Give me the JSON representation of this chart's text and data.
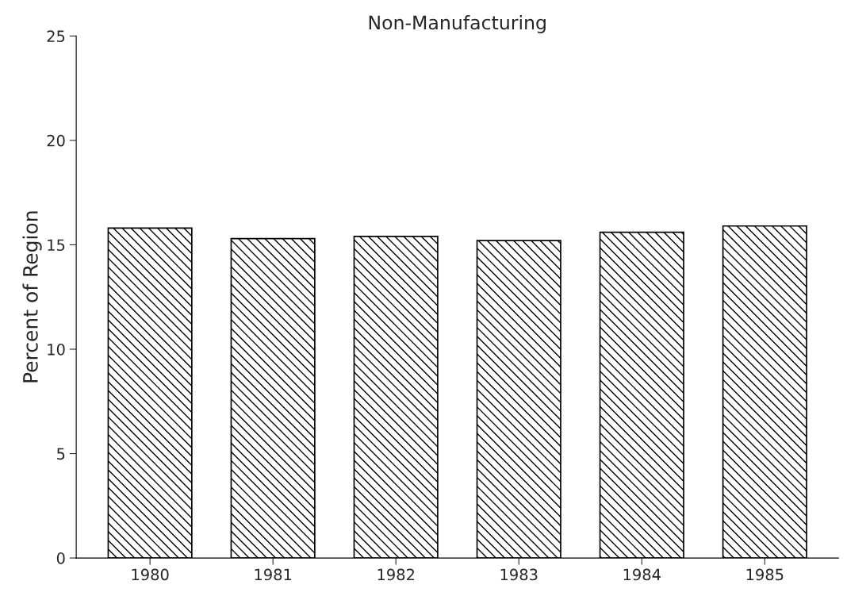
{
  "chart_data": {
    "type": "bar",
    "title": "Non-Manufacturing",
    "ylabel": "Percent of Region",
    "categories": [
      "1980",
      "1981",
      "1982",
      "1983",
      "1984",
      "1985"
    ],
    "values": [
      15.8,
      15.3,
      15.4,
      15.2,
      15.6,
      15.9
    ],
    "color": "#000000",
    "ylim": [
      0,
      25
    ],
    "yticks": [
      0,
      5,
      10,
      15,
      20,
      25
    ],
    "grid": false,
    "legend": false
  }
}
